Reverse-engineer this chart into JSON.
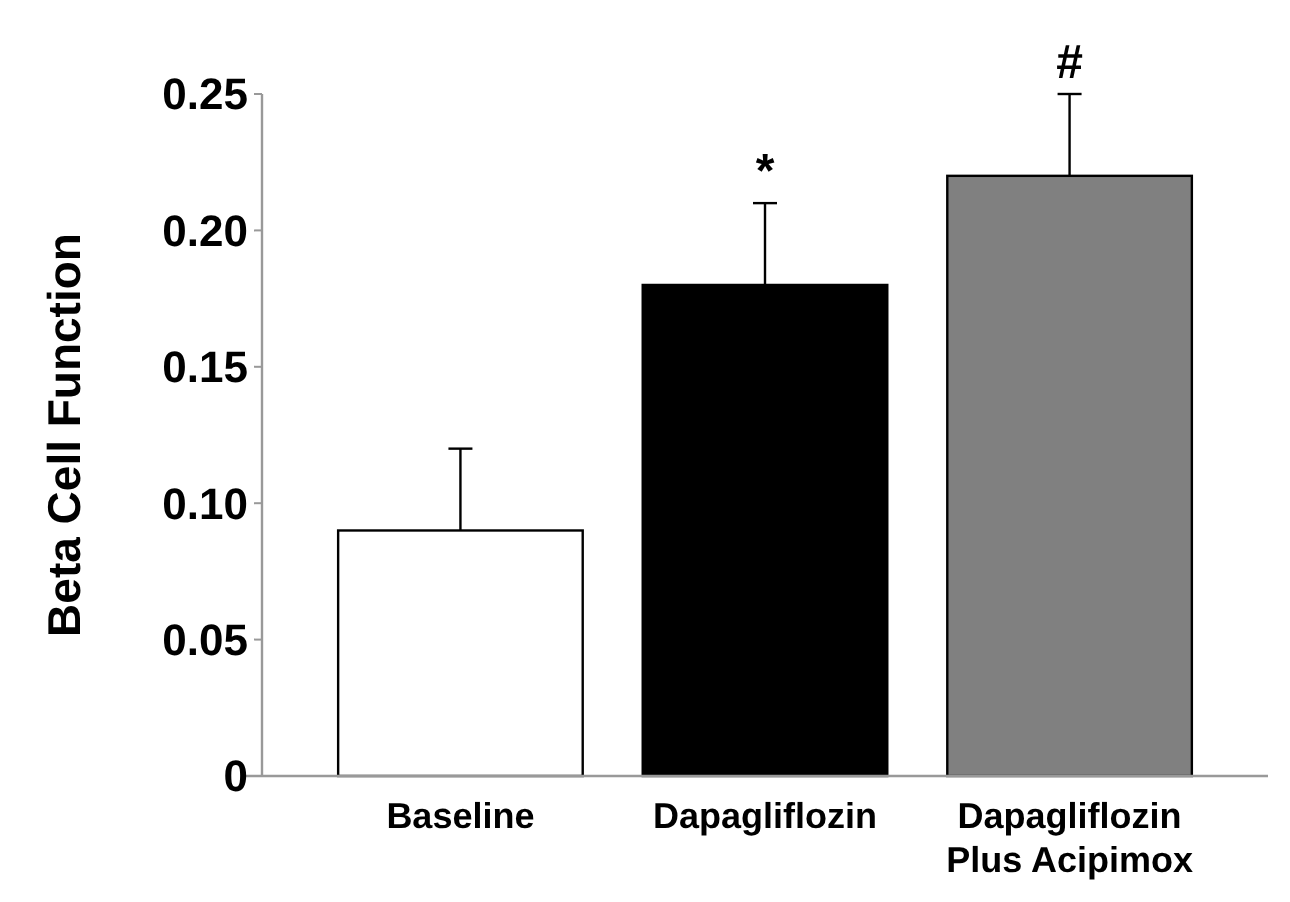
{
  "chart_data": {
    "type": "bar",
    "ylabel": "Beta Cell Function",
    "categories": [
      "Baseline",
      "Dapagliflozin",
      "Dapagliflozin Plus Acipimox"
    ],
    "values": [
      0.09,
      0.18,
      0.22
    ],
    "colors": [
      "#ffffff",
      "#000000",
      "#808080"
    ],
    "errors": [
      [
        0.09,
        0.12
      ],
      [
        0.18,
        0.21
      ],
      [
        0.22,
        0.25
      ]
    ],
    "ylim": [
      0,
      0.25
    ],
    "yticks": [
      0,
      0.05,
      {
        "value": 0.1,
        "label": "0.10"
      },
      0.15,
      {
        "value": 0.2,
        "label": "0.20"
      },
      0.25
    ],
    "annotations": [
      {
        "text": "*",
        "x": "Dapagliflozin",
        "y": 0.21
      },
      {
        "text": "#",
        "x": "Dapagliflozin Plus Acipimox",
        "y": 0.25
      }
    ],
    "grid": false
  }
}
